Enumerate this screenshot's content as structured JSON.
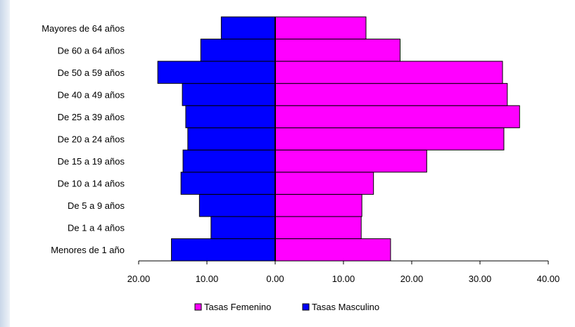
{
  "chart_data": {
    "type": "bar",
    "orientation": "horizontal",
    "layout": "population-pyramid",
    "categories": [
      "Menores de 1 año",
      "De 1 a 4 años",
      "De 5 a 9 años",
      "De 10 a 14 años",
      "De 15 a 19 años",
      "De 20 a 24 años",
      "De 25 a 39 años",
      "De 40 a 49 años",
      "De 50 a 59 años",
      "De 60 a 64 años",
      "Mayores de 64 años"
    ],
    "series": [
      {
        "name": "Tasas Femenino",
        "color": "#ff00ff",
        "values": [
          16.9,
          12.6,
          12.7,
          14.4,
          22.2,
          33.5,
          35.8,
          34.0,
          33.3,
          18.3,
          13.3
        ]
      },
      {
        "name": "Tasas Masculino",
        "color": "#0000ff",
        "values": [
          15.2,
          9.4,
          11.1,
          13.8,
          13.5,
          12.8,
          13.1,
          13.6,
          17.2,
          10.9,
          7.9
        ]
      }
    ],
    "xlim": [
      -20,
      40
    ],
    "x_ticks": [
      "20.00",
      "10.00",
      "0.00",
      "10.00",
      "20.00",
      "30.00",
      "40.00"
    ],
    "grid": false,
    "legend_position": "bottom"
  }
}
